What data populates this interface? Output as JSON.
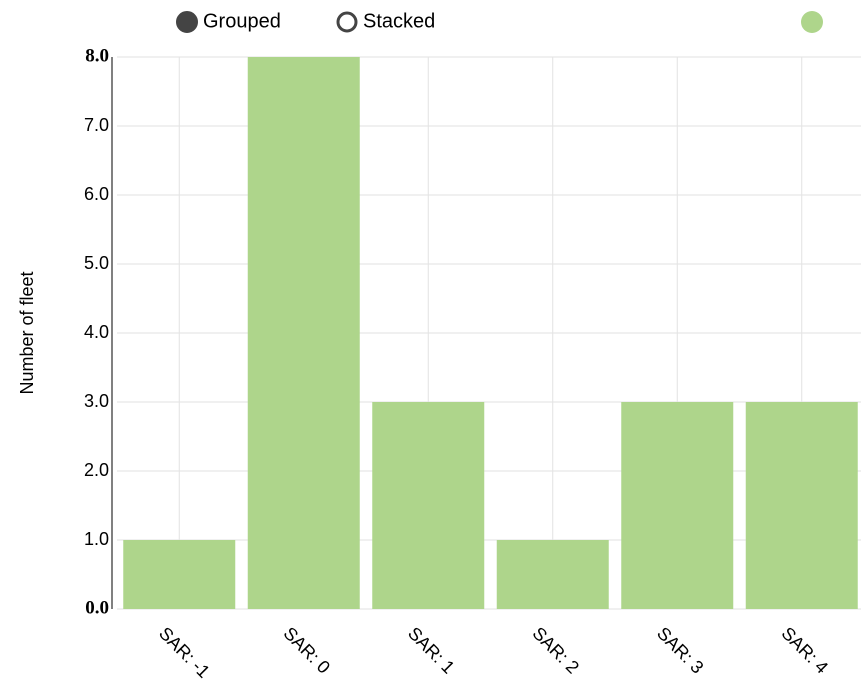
{
  "controls": [
    "Grouped",
    "Stacked"
  ],
  "chart_data": {
    "type": "bar",
    "y_label": "Number of fleet",
    "categories": [
      "SAR: -1",
      "SAR: 0",
      "SAR: 1",
      "SAR: 2",
      "SAR: 3",
      "SAR: 4"
    ],
    "values": [
      1,
      8,
      3,
      1,
      3,
      3
    ],
    "color": "#aed58b",
    "ylim": [
      0,
      8
    ],
    "yticks": [
      {
        "value": 0,
        "label": "0.0"
      },
      {
        "value": 1,
        "label": "1.0"
      },
      {
        "value": 2,
        "label": "2.0"
      },
      {
        "value": 3,
        "label": "3.0"
      },
      {
        "value": 4,
        "label": "4.0"
      },
      {
        "value": 5,
        "label": "5.0"
      },
      {
        "value": 6,
        "label": "6.0"
      },
      {
        "value": 7,
        "label": "7.0"
      },
      {
        "value": 8,
        "label": "8.0"
      }
    ],
    "grid": true
  }
}
